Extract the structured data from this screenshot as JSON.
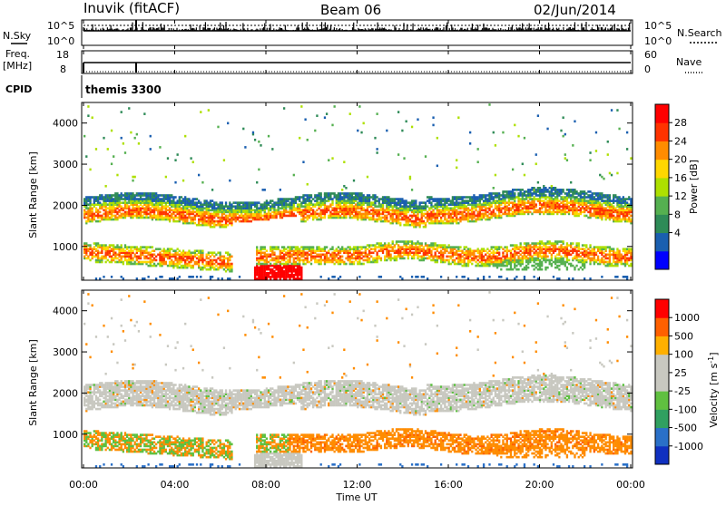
{
  "header": {
    "station": "Inuvik (fitACF)",
    "beam": "Beam 06",
    "date": "02/Jun/2014"
  },
  "top_panels": {
    "nsky_label": "N.Sky",
    "nsky_ticks": [
      "10^5",
      "10^0"
    ],
    "nsearch_label": "N.Search",
    "nsearch_ticks": [
      "10^5",
      "10^0"
    ],
    "freq_label": "Freq.",
    "freq_unit": "[MHz]",
    "freq_ticks": [
      "18",
      "8"
    ],
    "nave_label": "Nave",
    "nave_ticks": [
      "60",
      "0"
    ],
    "cpid_label": "CPID",
    "cpid_value": "themis 3300"
  },
  "chart_data": [
    {
      "type": "heatmap",
      "quantity": "Power",
      "ylabel": "Slant Range [km]",
      "ylim": [
        180,
        4500
      ],
      "yticks": [
        "4000",
        "3000",
        "2000",
        "1000"
      ],
      "xlim_hours": [
        0,
        24
      ],
      "colorbar_label": "Power [dB]",
      "colorbar_ticks": [
        "28",
        "24",
        "20",
        "16",
        "12",
        "8",
        "4"
      ],
      "colorbar_colors": [
        "#0000ff",
        "#1a5fb0",
        "#2e8b57",
        "#55b050",
        "#aee000",
        "#ffd700",
        "#ff8c00",
        "#ff3300",
        "#ff0000"
      ],
      "echo_bands": [
        {
          "name": "upper band",
          "range_km": [
            1600,
            2200
          ],
          "hours": [
            0,
            24
          ]
        },
        {
          "name": "lower band",
          "range_km": [
            700,
            1100
          ],
          "hours": [
            0,
            24
          ]
        },
        {
          "name": "strong echoes",
          "range_km": [
            180,
            600
          ],
          "hours": [
            7.5,
            9.5
          ]
        }
      ]
    },
    {
      "type": "heatmap",
      "quantity": "Velocity",
      "ylabel": "Slant Range [km]",
      "ylim": [
        180,
        4500
      ],
      "yticks": [
        "4000",
        "3000",
        "2000",
        "1000"
      ],
      "xlim_hours": [
        0,
        24
      ],
      "colorbar_label": "Velocity [m s",
      "colorbar_label_sup": "-1",
      "colorbar_label_end": "]",
      "colorbar_ticks": [
        "1000",
        "500",
        "100",
        "25",
        "-25",
        "-100",
        "-500",
        "-1000"
      ],
      "colorbar_colors": [
        "#1030c0",
        "#2a70c8",
        "#30a060",
        "#60c040",
        "#c8c8c0",
        "#c8c8c0",
        "#ffb000",
        "#ff6000",
        "#ff0000"
      ]
    }
  ],
  "time_axis": {
    "ticks": [
      "00:00",
      "04:00",
      "08:00",
      "12:00",
      "16:00",
      "20:00",
      "00:00"
    ],
    "label": "Time UT"
  }
}
